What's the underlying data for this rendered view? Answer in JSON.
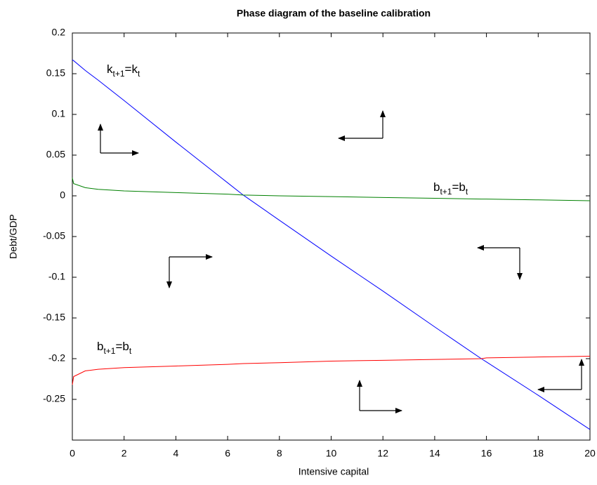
{
  "chart_data": {
    "type": "line",
    "title": "Phase diagram of the baseline calibration",
    "x_label": "Intensive capital",
    "y_label": "Debt/GDP",
    "x": [
      0,
      0.05,
      0.5,
      1,
      2,
      4,
      6,
      6.6,
      8,
      10,
      12,
      14,
      15.8,
      16,
      18,
      20
    ],
    "series": [
      {
        "name": "k_{t+1}=k_t",
        "color": "#0000ff",
        "values": [
          0.167,
          0.166,
          0.154,
          0.142,
          0.117,
          0.066,
          0.016,
          0.001,
          -0.03,
          -0.074,
          -0.117,
          -0.161,
          -0.2,
          -0.204,
          -0.245,
          -0.287
        ]
      },
      {
        "name": "b_{t+1}=b_t (upper)",
        "color": "#008000",
        "values": [
          0.022,
          0.015,
          0.01,
          0.008,
          0.006,
          0.004,
          0.002,
          0.001,
          0,
          -0.001,
          -0.002,
          -0.003,
          -0.004,
          -0.004,
          -0.005,
          -0.006
        ]
      },
      {
        "name": "b_{t+1}=b_t (lower)",
        "color": "#ff0000",
        "values": [
          -0.232,
          -0.222,
          -0.215,
          -0.213,
          -0.211,
          -0.209,
          -0.207,
          -0.206,
          -0.205,
          -0.203,
          -0.202,
          -0.201,
          -0.2,
          -0.199,
          -0.198,
          -0.197
        ]
      }
    ],
    "annotations": [
      {
        "parts": [
          "k",
          "t+1",
          "=k",
          "t"
        ]
      },
      {
        "parts": [
          "b",
          "t+1",
          "=b",
          "t"
        ]
      },
      {
        "parts": [
          "b",
          "t+1",
          "=b",
          "t"
        ]
      }
    ],
    "xlim": [
      0,
      20
    ],
    "xticks": [
      0,
      2,
      4,
      6,
      8,
      10,
      12,
      14,
      16,
      18,
      20
    ],
    "ylim": [
      -0.3,
      0.2
    ],
    "yticks": [
      0.2,
      0.15,
      0.1,
      0.05,
      0,
      -0.05,
      -0.1,
      -0.15,
      -0.2,
      -0.25
    ],
    "grid": false
  }
}
